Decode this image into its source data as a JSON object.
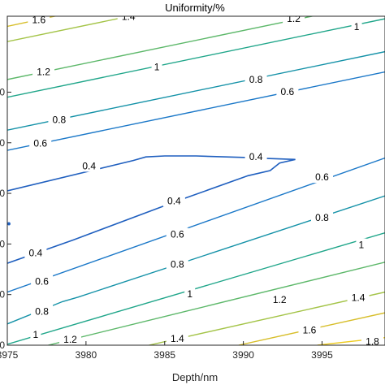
{
  "chart_data": {
    "type": "contour",
    "title": "Uniformity/%",
    "xlabel": "Depth/nm",
    "ylabel": "",
    "xlim": [
      3975,
      3999
    ],
    "ylim": [
      0,
      6.5
    ],
    "x_ticks": [
      3975,
      3980,
      3985,
      3990,
      3995
    ],
    "x_tick_labels": [
      "3975",
      "3980",
      "3985",
      "3990",
      "3995"
    ],
    "y_ticks": [
      0,
      1,
      2,
      3,
      4,
      5
    ],
    "y_tick_labels": [
      "0",
      "0",
      "0",
      "0",
      "0",
      "0"
    ],
    "grid": false,
    "colors": {
      "0.4": "#1f5fbf",
      "0.6": "#1b78c8",
      "0.8": "#1592a8",
      "1": "#20a68a",
      "1.2": "#5db86a",
      "1.4": "#a4c448",
      "1.6": "#d7be2a",
      "1.8": "#eecb1f"
    },
    "contours": [
      {
        "level": "1.6",
        "label_text": "1.6",
        "points": [
          [
            3975,
            6.3
          ],
          [
            3990,
            7.3
          ]
        ],
        "labels": [
          [
            3977.0,
            6.43
          ]
        ]
      },
      {
        "level": "1.4",
        "label_text": "1.4",
        "points": [
          [
            3975,
            6.0
          ],
          [
            3999,
            7.55
          ]
        ],
        "labels": [
          [
            3982.7,
            6.49
          ]
        ]
      },
      {
        "level": "1.2",
        "label_text": "1.2",
        "points": [
          [
            3975,
            5.25
          ],
          [
            3999,
            6.8
          ]
        ],
        "labels": [
          [
            3977.3,
            5.4
          ],
          [
            3993.2,
            6.45
          ]
        ]
      },
      {
        "level": "1",
        "label_text": "1",
        "points": [
          [
            3975,
            4.9
          ],
          [
            3999,
            6.45
          ]
        ],
        "labels": [
          [
            3984.5,
            5.5
          ],
          [
            3997.2,
            6.29
          ]
        ]
      },
      {
        "level": "0.8",
        "label_text": "0.8",
        "points": [
          [
            3975,
            4.25
          ],
          [
            3999,
            5.8
          ]
        ],
        "labels": [
          [
            3978.3,
            4.45
          ],
          [
            3990.8,
            5.25
          ]
        ]
      },
      {
        "level": "0.6",
        "label_text": "0.6",
        "points": [
          [
            3975,
            3.85
          ],
          [
            3999,
            5.4
          ]
        ],
        "labels": [
          [
            3977.1,
            3.99
          ],
          [
            3992.8,
            5.01
          ]
        ]
      },
      {
        "level": "0.4",
        "label_text": "0.4",
        "points": [
          [
            3975,
            3.05
          ],
          [
            3983.0,
            3.65
          ],
          [
            3983.8,
            3.72
          ],
          [
            3985,
            3.74
          ],
          [
            3987,
            3.74
          ],
          [
            3990,
            3.71
          ],
          [
            3991.5,
            3.69
          ],
          [
            3993.3,
            3.67
          ],
          [
            3992.3,
            3.6
          ],
          [
            3991.7,
            3.45
          ],
          [
            3990.3,
            3.35
          ],
          [
            3985.8,
            2.85
          ],
          [
            3979.2,
            2.08
          ],
          [
            3975,
            1.62
          ]
        ],
        "labels": [
          [
            3980.2,
            3.54
          ],
          [
            3990.8,
            3.72
          ],
          [
            3985.6,
            2.85
          ],
          [
            3976.8,
            1.82
          ]
        ]
      },
      {
        "level": "0.6",
        "label_text": "0.6",
        "points": [
          [
            3975,
            1.05
          ],
          [
            3999,
            3.7
          ]
        ],
        "labels": [
          [
            3977.2,
            1.26
          ],
          [
            3985.8,
            2.19
          ],
          [
            3995.0,
            3.32
          ]
        ]
      },
      {
        "level": "0.8",
        "label_text": "0.8",
        "points": [
          [
            3975,
            0.42
          ],
          [
            3978.5,
            0.86
          ],
          [
            3979.5,
            0.95
          ],
          [
            3999,
            2.95
          ]
        ],
        "labels": [
          [
            3977.2,
            0.67
          ],
          [
            3985.8,
            1.6
          ],
          [
            3995.0,
            2.52
          ]
        ]
      },
      {
        "level": "1",
        "label_text": "1",
        "points": [
          [
            3975,
            0.02
          ],
          [
            3999,
            2.22
          ]
        ],
        "labels": [
          [
            3976.8,
            0.21
          ],
          [
            3986.6,
            1.01
          ],
          [
            3997.5,
            1.98
          ]
        ]
      },
      {
        "level": "1.2",
        "label_text": "1.2",
        "points": [
          [
            3977.6,
            0
          ],
          [
            3999,
            1.64
          ]
        ],
        "labels": [
          [
            3979.0,
            0.11
          ],
          [
            3992.3,
            0.9
          ]
        ]
      },
      {
        "level": "1.4",
        "label_text": "1.4",
        "points": [
          [
            3984.0,
            0
          ],
          [
            3999,
            1.05
          ]
        ],
        "labels": [
          [
            3985.8,
            0.13
          ],
          [
            3997.3,
            0.94
          ]
        ]
      },
      {
        "level": "1.6",
        "label_text": "1.6",
        "points": [
          [
            3989.7,
            0
          ],
          [
            3999,
            0.64
          ]
        ],
        "labels": [
          [
            3994.2,
            0.3
          ]
        ]
      },
      {
        "level": "1.8",
        "label_text": "1.8",
        "points": [
          [
            3994.7,
            0
          ],
          [
            3999,
            0.15
          ]
        ],
        "labels": [
          [
            3998.2,
            0.07
          ]
        ]
      }
    ],
    "markers": [
      [
        3975.1,
        2.4
      ]
    ]
  }
}
